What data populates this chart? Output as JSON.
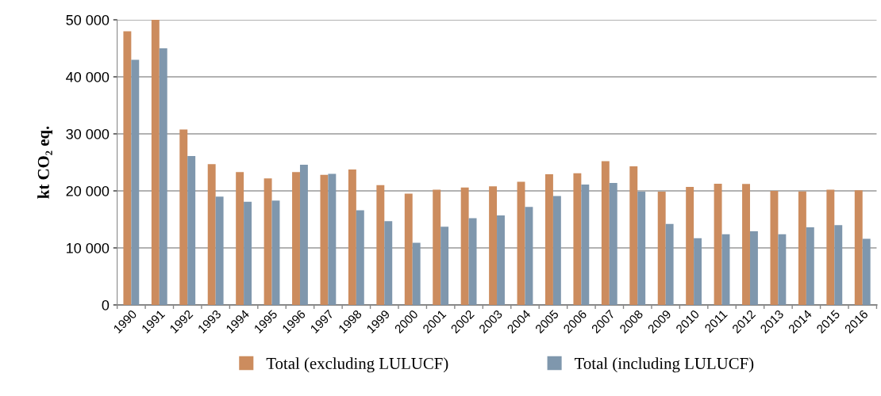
{
  "chart_data": {
    "type": "bar",
    "ylabel": "kt CO₂ eq.",
    "categories": [
      "1990",
      "1991",
      "1992",
      "1993",
      "1994",
      "1995",
      "1996",
      "1997",
      "1998",
      "1999",
      "2000",
      "2001",
      "2002",
      "2003",
      "2004",
      "2005",
      "2006",
      "2007",
      "2008",
      "2009",
      "2010",
      "2011",
      "2012",
      "2013",
      "2014",
      "2015",
      "2016"
    ],
    "series": [
      {
        "name": "Total (excluding LULUCF)",
        "color": "#cc8c5e",
        "values": [
          48000,
          50000,
          30750,
          24700,
          23300,
          22200,
          23300,
          22800,
          23750,
          21000,
          19500,
          20200,
          20600,
          20800,
          21600,
          22900,
          23100,
          25200,
          24300,
          19850,
          20700,
          21250,
          21200,
          20000,
          19900,
          20200,
          20100
        ]
      },
      {
        "name": "Total (including LULUCF)",
        "color": "#7f97ad",
        "values": [
          43000,
          45000,
          26100,
          19000,
          18100,
          18300,
          24600,
          23000,
          16600,
          14700,
          10900,
          13700,
          15200,
          15700,
          17200,
          19100,
          21100,
          21400,
          19850,
          14200,
          11700,
          12400,
          12900,
          12400,
          13600,
          14000,
          11600
        ]
      }
    ],
    "ylim": [
      0,
      50000
    ],
    "yticks": [
      {
        "value": 0,
        "label": "0"
      },
      {
        "value": 10000,
        "label": "10 000"
      },
      {
        "value": 20000,
        "label": "20 000"
      },
      {
        "value": 30000,
        "label": "30 000"
      },
      {
        "value": 40000,
        "label": "40 000"
      },
      {
        "value": 50000,
        "label": "50 000"
      }
    ],
    "grid": "y",
    "legend": "bottom"
  }
}
